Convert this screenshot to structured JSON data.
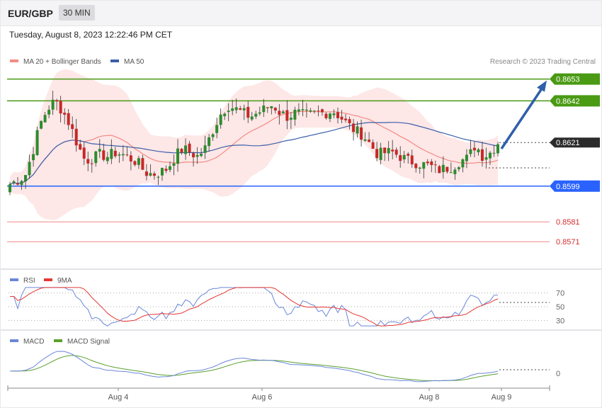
{
  "header": {
    "symbol": "EUR/GBP",
    "timeframe": "30 MIN",
    "datetime": "Tuesday, August 8, 2023 12:22:46 PM CET"
  },
  "legend": {
    "ma20_bb": "MA 20 + Bollinger Bands",
    "ma50": "MA 50",
    "credit": "Research © 2023 Trading Central"
  },
  "colors": {
    "ma20": "#f28b82",
    "ma50": "#3a5fa8",
    "bull": "#2e8b2e",
    "bear": "#c62828",
    "support": "#2962ff",
    "resistance": "#4a9a14",
    "red_level": "#e53935",
    "arrow": "#2f5fa8",
    "rsi": "#6a86d8",
    "rsi_ma": "#e53935",
    "macd": "#6a86d8",
    "macd_signal": "#5aa02c"
  },
  "chart_data": [
    {
      "type": "candlestick",
      "title": "",
      "ylim": [
        0.856,
        0.866
      ],
      "x_ticks": [
        "Aug 4",
        "Aug 6",
        "Aug 8",
        "Aug 9"
      ],
      "levels": [
        {
          "value": 0.8653,
          "label": "0.8653",
          "kind": "resistance"
        },
        {
          "value": 0.8642,
          "label": "0.8642",
          "kind": "resistance"
        },
        {
          "value": 0.8621,
          "label": "0.8621",
          "kind": "current"
        },
        {
          "value": 0.8599,
          "label": "0.8599",
          "kind": "support"
        },
        {
          "value": 0.8581,
          "label": "0.8581",
          "kind": "red"
        },
        {
          "value": 0.8571,
          "label": "0.8571",
          "kind": "red"
        }
      ],
      "close_path": [
        0.86,
        0.8602,
        0.8604,
        0.8616,
        0.863,
        0.8638,
        0.8642,
        0.8637,
        0.863,
        0.862,
        0.8612,
        0.8613,
        0.8615,
        0.8614,
        0.8616,
        0.8615,
        0.8613,
        0.8611,
        0.8606,
        0.8605,
        0.8606,
        0.8608,
        0.8614,
        0.8618,
        0.8616,
        0.8614,
        0.8618,
        0.8627,
        0.8635,
        0.864,
        0.8638,
        0.8636,
        0.8634,
        0.8636,
        0.8638,
        0.864,
        0.8636,
        0.8634,
        0.8636,
        0.8635,
        0.8635,
        0.8636,
        0.8636,
        0.8637,
        0.8634,
        0.863,
        0.8627,
        0.8625,
        0.862,
        0.8615,
        0.8616,
        0.8616,
        0.8614,
        0.8612,
        0.8611,
        0.861,
        0.8609,
        0.8607,
        0.8608,
        0.8609,
        0.8612,
        0.8613,
        0.862,
        0.8614,
        0.8616,
        0.8621
      ]
    },
    {
      "type": "line",
      "title": "RSI",
      "series": [
        {
          "name": "RSI"
        },
        {
          "name": "9MA"
        }
      ],
      "levels": [
        70,
        50,
        30
      ],
      "ylim": [
        20,
        80
      ]
    },
    {
      "type": "line",
      "title": "MACD",
      "series": [
        {
          "name": "MACD"
        },
        {
          "name": "MACD Signal"
        }
      ],
      "levels": [
        0
      ]
    }
  ],
  "rsi_legend": {
    "rsi": "RSI",
    "ma": "9MA"
  },
  "rsi_levels": [
    "70",
    "50",
    "30"
  ],
  "macd_legend": {
    "macd": "MACD",
    "signal": "MACD Signal"
  },
  "macd_levels": [
    "0"
  ]
}
